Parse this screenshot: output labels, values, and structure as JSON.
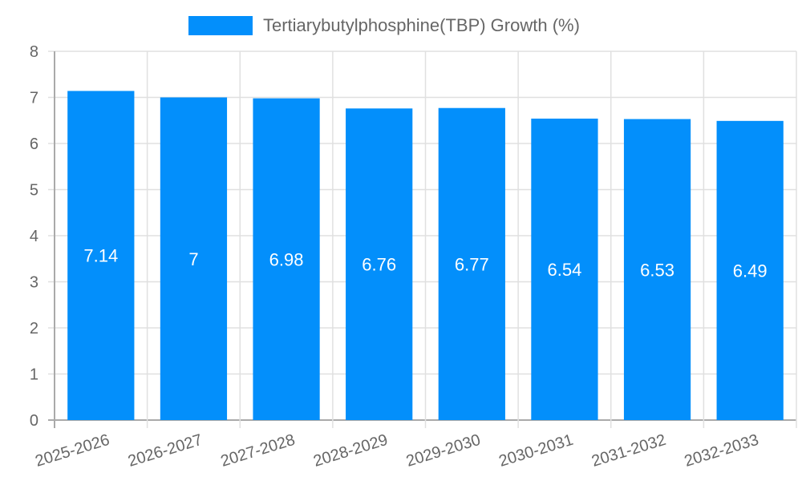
{
  "chart_data": {
    "type": "bar",
    "title": "",
    "categories": [
      "2025-2026",
      "2026-2027",
      "2027-2028",
      "2028-2029",
      "2029-2030",
      "2030-2031",
      "2031-2032",
      "2032-2033"
    ],
    "series": [
      {
        "name": "Tertiarybutylphosphine(TBP) Growth (%)",
        "values": [
          7.14,
          7,
          6.98,
          6.76,
          6.77,
          6.54,
          6.53,
          6.49
        ],
        "color": "#038ffb"
      }
    ],
    "xlabel": "",
    "ylabel": "",
    "ylim": [
      0,
      8
    ],
    "yticks": [
      0,
      1,
      2,
      3,
      4,
      5,
      6,
      7,
      8
    ],
    "grid": true,
    "legend_position": "top",
    "data_labels": [
      "7.14",
      "7",
      "6.98",
      "6.76",
      "6.77",
      "6.54",
      "6.53",
      "6.49"
    ]
  },
  "legend": {
    "label": "Tertiarybutylphosphine(TBP) Growth (%)",
    "swatch_color": "#038ffb"
  },
  "colors": {
    "bar": "#038ffb",
    "grid": "#e0e0e0",
    "axis": "#aaaaaa",
    "tick_text": "#666666",
    "bar_label": "#ffffff"
  }
}
